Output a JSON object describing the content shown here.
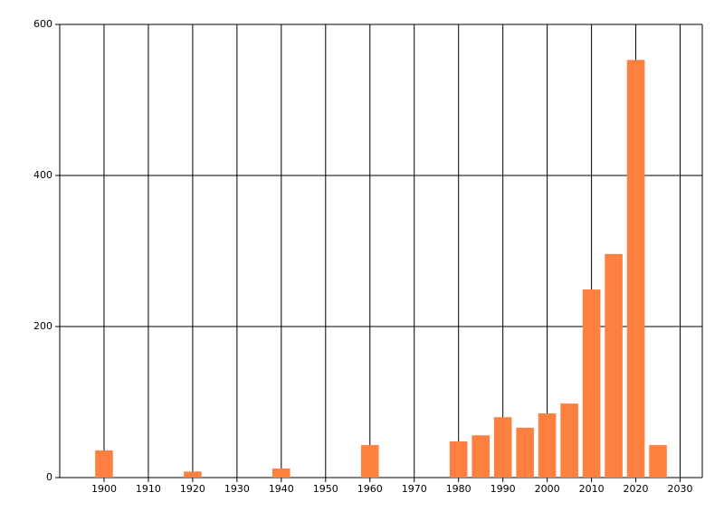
{
  "chart_data": {
    "type": "bar",
    "x": [
      1900,
      1920,
      1940,
      1960,
      1980,
      1985,
      1990,
      1995,
      2000,
      2005,
      2010,
      2015,
      2020,
      2025
    ],
    "values": [
      36,
      8,
      12,
      43,
      48,
      56,
      80,
      66,
      85,
      98,
      249,
      296,
      553,
      43
    ],
    "color": "#ff7f3f",
    "xlim": [
      1890,
      2035
    ],
    "xticks": [
      1900,
      1910,
      1920,
      1930,
      1940,
      1950,
      1960,
      1970,
      1980,
      1990,
      2000,
      2010,
      2020,
      2030
    ],
    "ylim": [
      0,
      600
    ],
    "yticks": [
      0,
      200,
      400,
      600
    ],
    "grid": true
  }
}
